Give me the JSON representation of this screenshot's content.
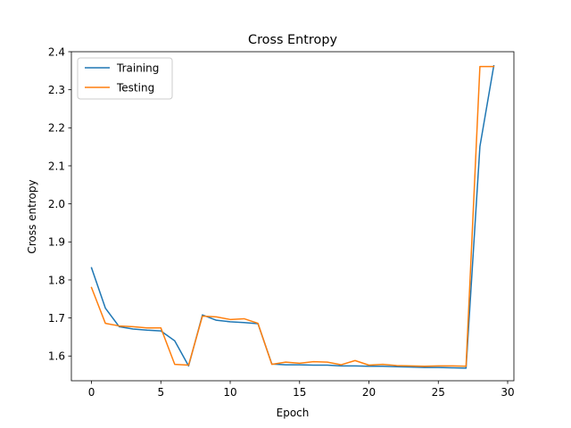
{
  "chart_data": {
    "type": "line",
    "title": "Cross Entropy",
    "xlabel": "Epoch",
    "ylabel": "Cross entropy",
    "xlim": [
      -1.45,
      30.45
    ],
    "ylim": [
      1.535,
      2.4
    ],
    "xticks": [
      0,
      5,
      10,
      15,
      20,
      25,
      30
    ],
    "yticks": [
      1.6,
      1.7,
      1.8,
      1.9,
      2.0,
      2.1,
      2.2,
      2.3,
      2.4
    ],
    "xtick_labels": [
      "0",
      "5",
      "10",
      "15",
      "20",
      "25",
      "30"
    ],
    "ytick_labels": [
      "1.6",
      "1.7",
      "1.8",
      "1.9",
      "2.0",
      "2.1",
      "2.2",
      "2.3",
      "2.4"
    ],
    "grid": false,
    "legend_position": "top-left",
    "x": [
      0,
      1,
      2,
      3,
      4,
      5,
      6,
      7,
      8,
      9,
      10,
      11,
      12,
      13,
      14,
      15,
      16,
      17,
      18,
      19,
      20,
      21,
      22,
      23,
      24,
      25,
      26,
      27,
      28,
      29
    ],
    "series": [
      {
        "name": "Training",
        "color": "#1f77b4",
        "values": [
          1.832,
          1.726,
          1.677,
          1.671,
          1.668,
          1.666,
          1.64,
          1.574,
          1.708,
          1.694,
          1.69,
          1.688,
          1.685,
          1.579,
          1.577,
          1.577,
          1.576,
          1.576,
          1.574,
          1.574,
          1.573,
          1.573,
          1.572,
          1.571,
          1.57,
          1.57,
          1.569,
          1.568,
          2.151,
          2.363
        ]
      },
      {
        "name": "Testing",
        "color": "#ff7f0e",
        "values": [
          1.78,
          1.686,
          1.679,
          1.677,
          1.674,
          1.674,
          1.578,
          1.576,
          1.705,
          1.703,
          1.696,
          1.698,
          1.686,
          1.578,
          1.584,
          1.581,
          1.585,
          1.584,
          1.577,
          1.588,
          1.576,
          1.578,
          1.575,
          1.574,
          1.573,
          1.574,
          1.574,
          1.573,
          2.361,
          2.361
        ]
      }
    ]
  }
}
